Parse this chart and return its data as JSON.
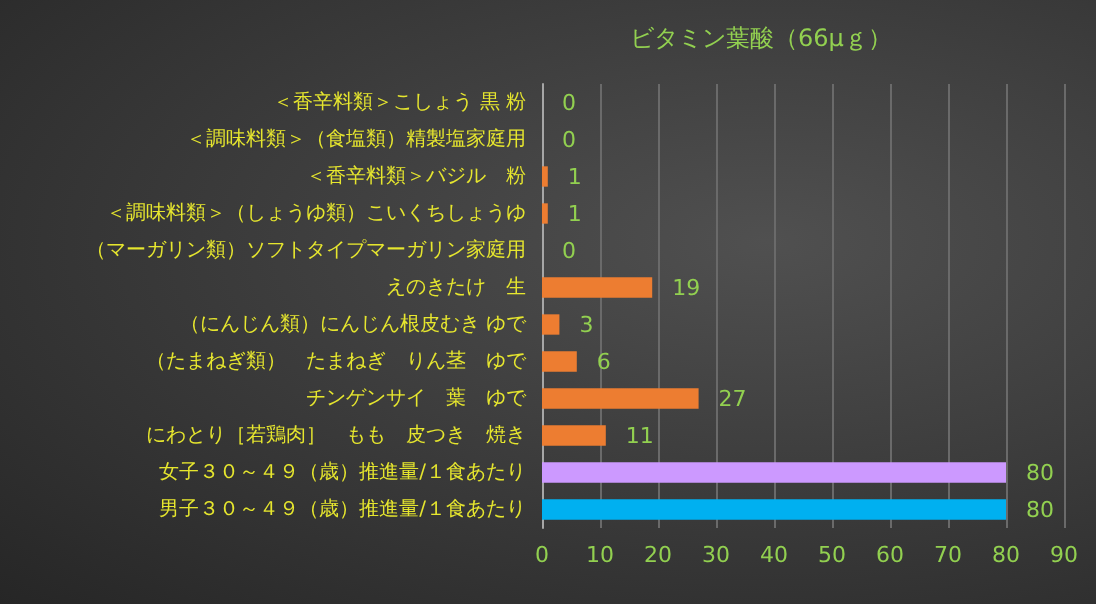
{
  "chart_data": {
    "type": "bar",
    "orientation": "horizontal",
    "title": "ビタミン葉酸（66μｇ）",
    "categories": [
      "＜香辛料類＞こしょう 黒 粉",
      "＜調味料類＞（食塩類）精製塩家庭用",
      "＜香辛料類＞バジル　粉",
      "＜調味料類＞（しょうゆ類）こいくちしょうゆ",
      "（マーガリン類）ソフトタイプマーガリン家庭用",
      "えのきたけ　生",
      "（にんじん類）にんじん根皮むき ゆで",
      "（たまねぎ類）　たまねぎ　りん茎　ゆで",
      "チンゲンサイ　葉　ゆで",
      "にわとり［若鶏肉］　もも　皮つき　焼き",
      "女子３０～４９（歳）推進量/１食あたり",
      "男子３０～４９（歳）推進量/１食あたり"
    ],
    "values": [
      0,
      0,
      1,
      1,
      0,
      19,
      3,
      6,
      27,
      11,
      80,
      80
    ],
    "colors": [
      "#ed7d31",
      "#ed7d31",
      "#ed7d31",
      "#ed7d31",
      "#ed7d31",
      "#ed7d31",
      "#ed7d31",
      "#ed7d31",
      "#ed7d31",
      "#ed7d31",
      "#cc99ff",
      "#00b0f0"
    ],
    "xlim": [
      0,
      90
    ],
    "xticks": [
      0,
      10,
      20,
      30,
      40,
      50,
      60,
      70,
      80,
      90
    ],
    "grid": "x",
    "data_labels": true
  }
}
